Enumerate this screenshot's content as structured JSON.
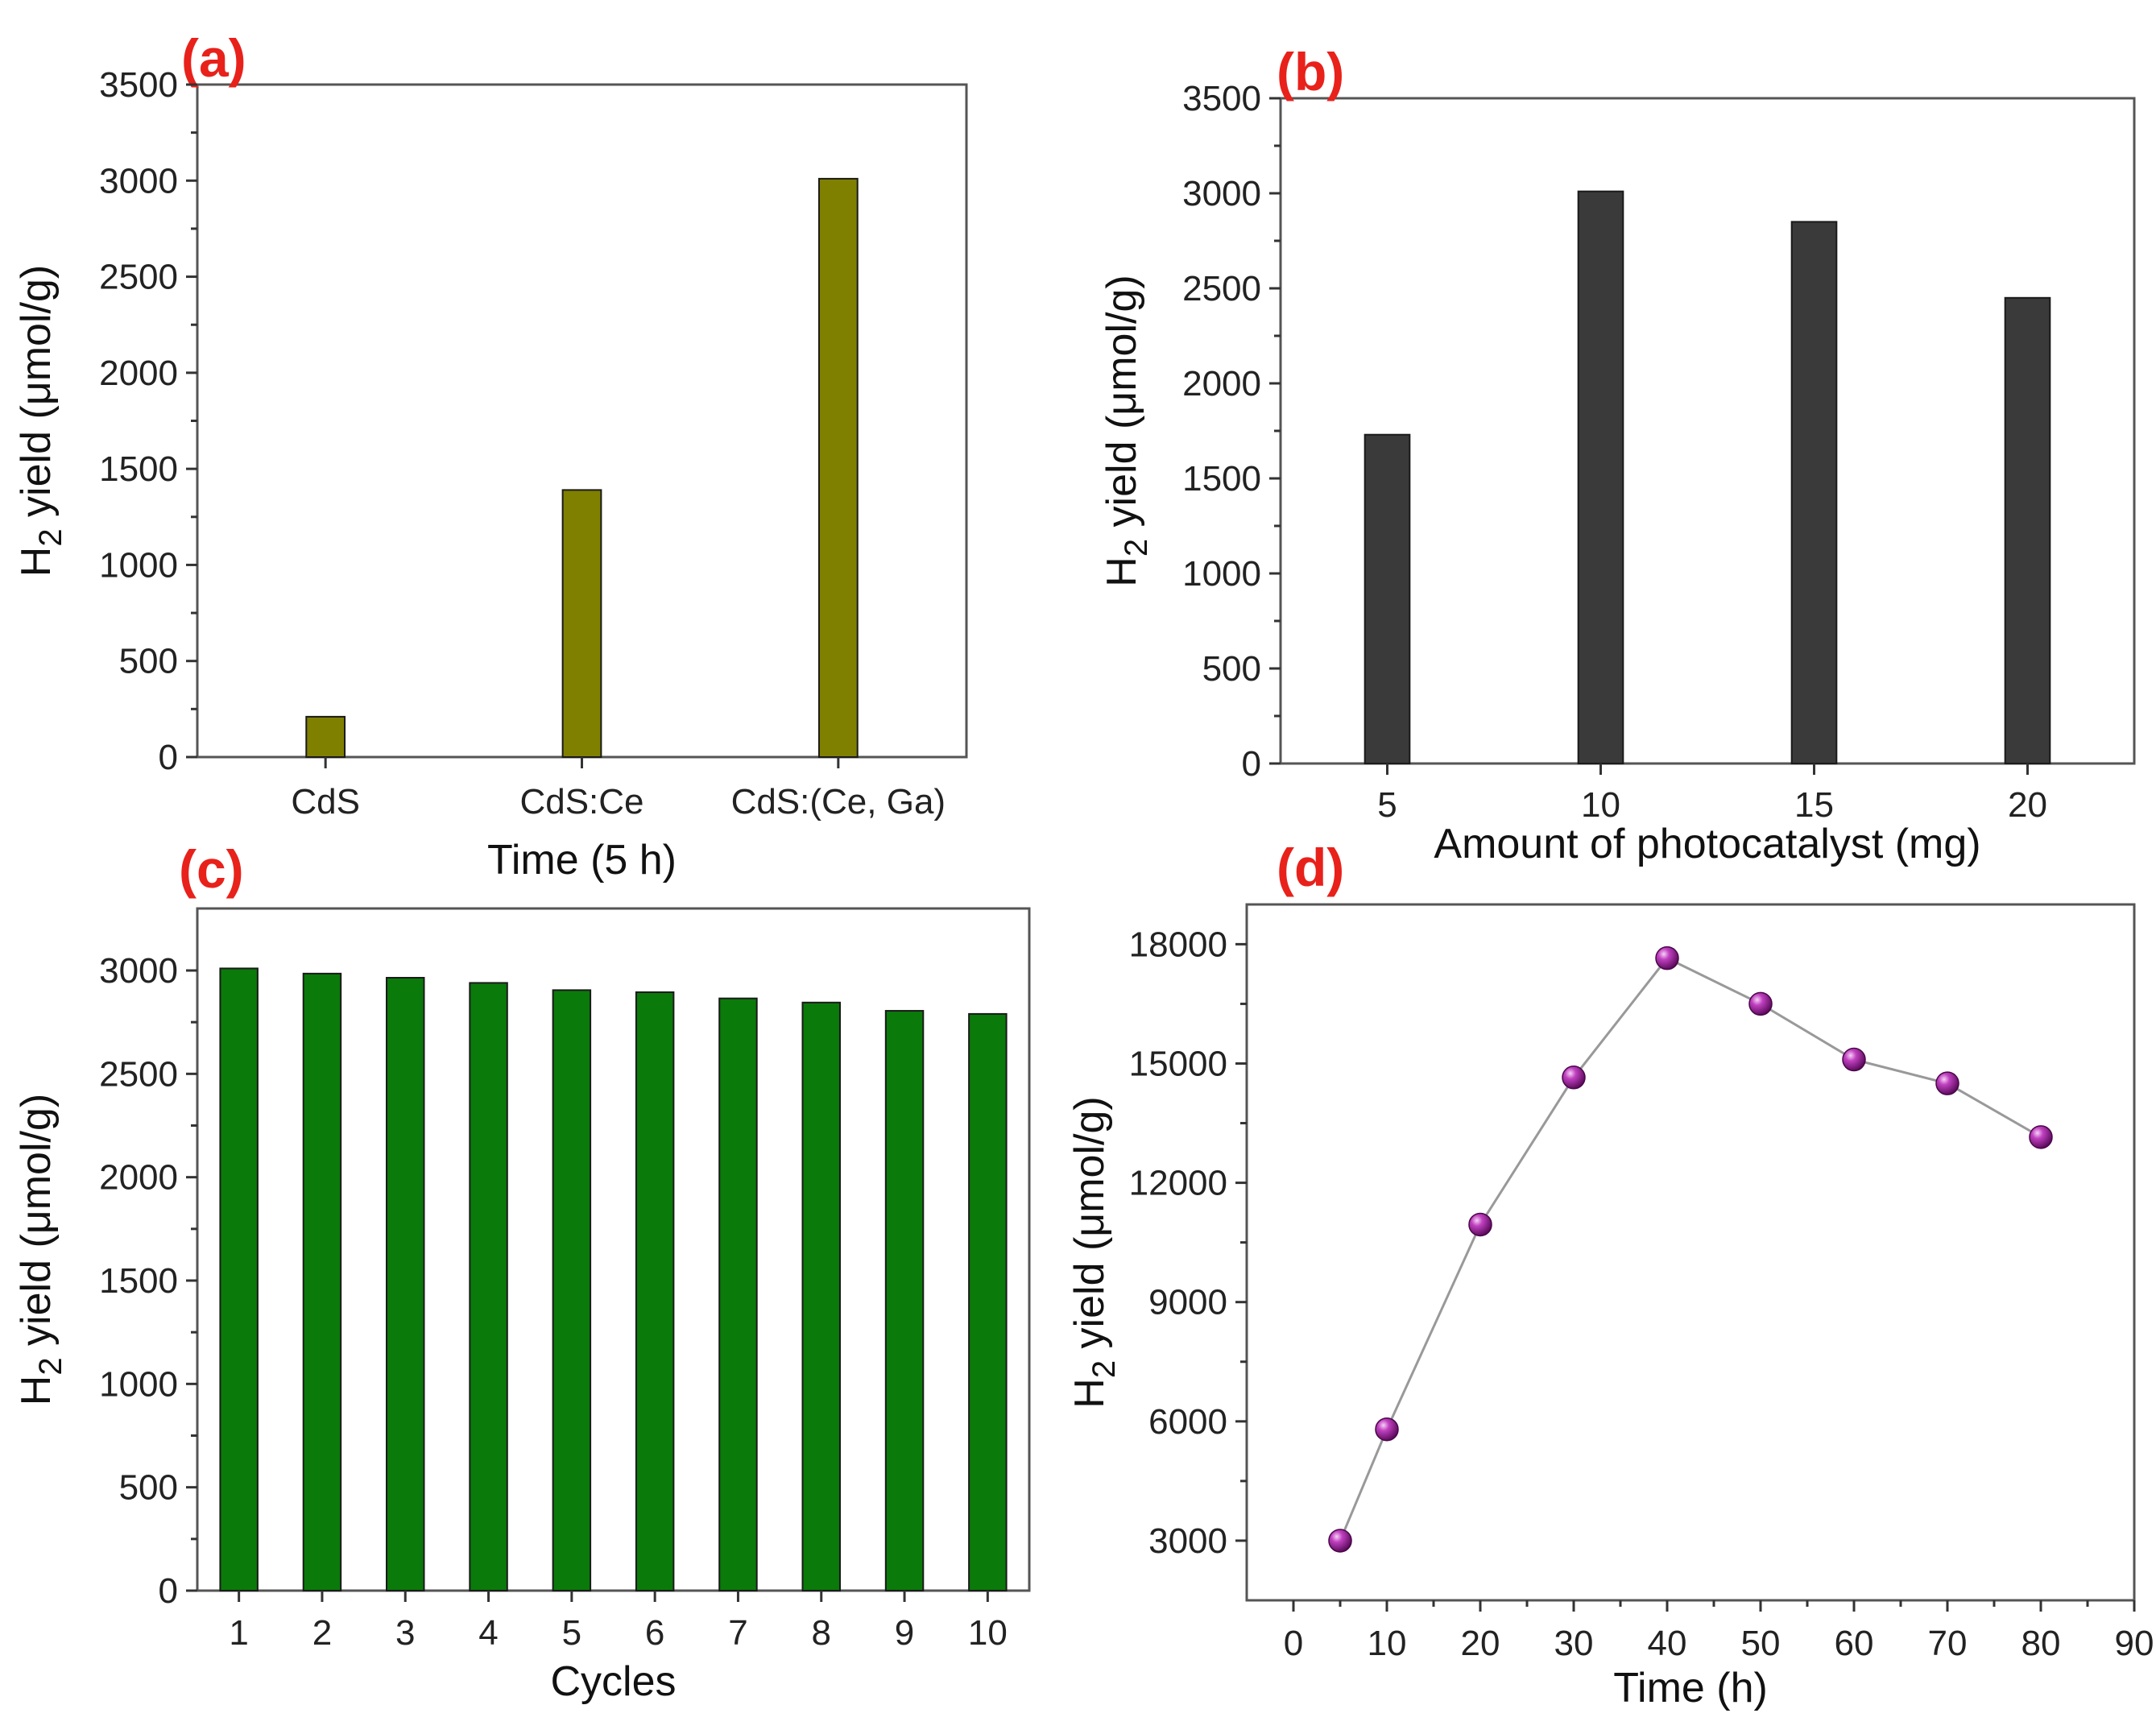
{
  "figure": {
    "colors": {
      "panel_label": "#e8211b"
    }
  },
  "chart_data": [
    {
      "id": "a",
      "type": "bar",
      "panel_label": "(a)",
      "categories": [
        "CdS",
        "CdS:Ce",
        "CdS:(Ce, Ga)"
      ],
      "values": [
        210,
        1390,
        3010
      ],
      "xlabel": "Time (5 h)",
      "ylabel_main": "H",
      "ylabel_sub": "2",
      "ylabel_rest": " yield (μmol/g)",
      "ylim": [
        0,
        3500
      ],
      "yticks": [
        0,
        500,
        1000,
        1500,
        2000,
        2500,
        3000,
        3500
      ],
      "bar_color": "#808000",
      "grid": false
    },
    {
      "id": "b",
      "type": "bar",
      "panel_label": "(b)",
      "categories": [
        "5",
        "10",
        "15",
        "20"
      ],
      "values": [
        1730,
        3010,
        2850,
        2450
      ],
      "xlabel": "Amount of photocatalyst (mg)",
      "ylabel_main": "H",
      "ylabel_sub": "2",
      "ylabel_rest": " yield (μmol/g)",
      "ylim": [
        0,
        3500
      ],
      "yticks": [
        0,
        500,
        1000,
        1500,
        2000,
        2500,
        3000,
        3500
      ],
      "bar_color": "#3a3a3a",
      "grid": false
    },
    {
      "id": "c",
      "type": "bar",
      "panel_label": "(c)",
      "categories": [
        "1",
        "2",
        "3",
        "4",
        "5",
        "6",
        "7",
        "8",
        "9",
        "10"
      ],
      "values": [
        3010,
        2985,
        2965,
        2940,
        2905,
        2895,
        2865,
        2845,
        2805,
        2790
      ],
      "xlabel": "Cycles",
      "ylabel_main": "H",
      "ylabel_sub": "2",
      "ylabel_rest": " yield (μmol/g)",
      "ylim": [
        0,
        3300
      ],
      "yticks": [
        0,
        500,
        1000,
        1500,
        2000,
        2500,
        3000
      ],
      "bar_color": "#0a7a0a",
      "grid": false
    },
    {
      "id": "d",
      "type": "line",
      "panel_label": "(d)",
      "x": [
        5,
        10,
        20,
        30,
        40,
        50,
        60,
        70,
        80
      ],
      "y": [
        3000,
        5800,
        10950,
        14650,
        17650,
        16500,
        15100,
        14500,
        13150
      ],
      "xlabel": "Time (h)",
      "ylabel_main": "H",
      "ylabel_sub": "2",
      "ylabel_rest": " yield (μmol/g)",
      "xlim": [
        -5,
        90
      ],
      "ylim": [
        1500,
        19000
      ],
      "xticks": [
        0,
        10,
        20,
        30,
        40,
        50,
        60,
        70,
        80,
        90
      ],
      "yticks": [
        3000,
        6000,
        9000,
        12000,
        15000,
        18000
      ],
      "marker_color": "#a020a0",
      "line_color": "#999999",
      "grid": false
    }
  ]
}
